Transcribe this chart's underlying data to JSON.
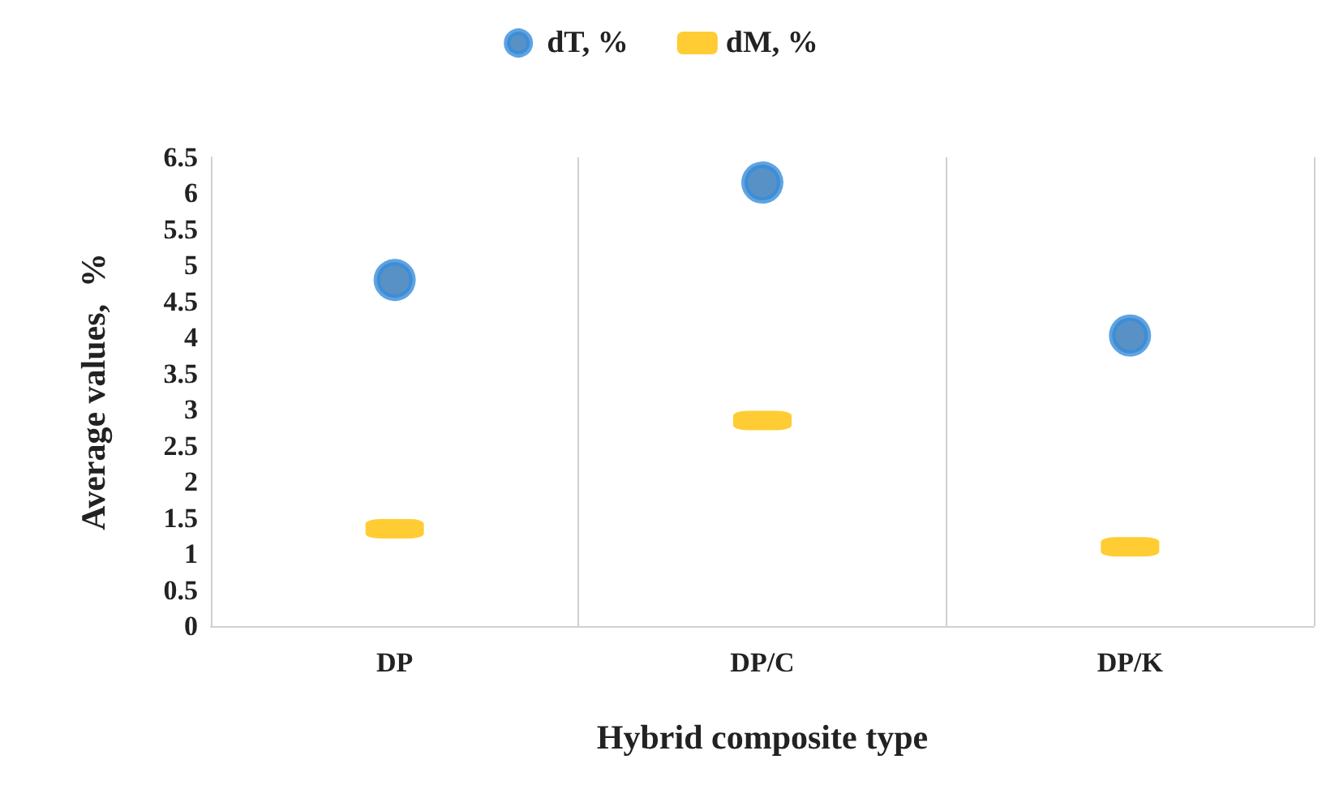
{
  "chart_data": {
    "type": "scatter",
    "xlabel": "Hybrid composite type",
    "ylabel": "Average values,  %",
    "categories": [
      "DP",
      "DP/C",
      "DP/K"
    ],
    "series": [
      {
        "name": "dT, %",
        "color": "#2e75b6",
        "marker": "circle",
        "values": [
          4.8,
          6.15,
          4.03
        ]
      },
      {
        "name": "dM, %",
        "color": "#ffc000",
        "marker": "square",
        "values": [
          1.35,
          2.85,
          1.1
        ]
      }
    ],
    "ylim": [
      0,
      6.5
    ],
    "yticks": [
      0,
      0.5,
      1,
      1.5,
      2,
      2.5,
      3,
      3.5,
      4,
      4.5,
      5,
      5.5,
      6,
      6.5
    ],
    "grid": "x",
    "legend": "top"
  }
}
